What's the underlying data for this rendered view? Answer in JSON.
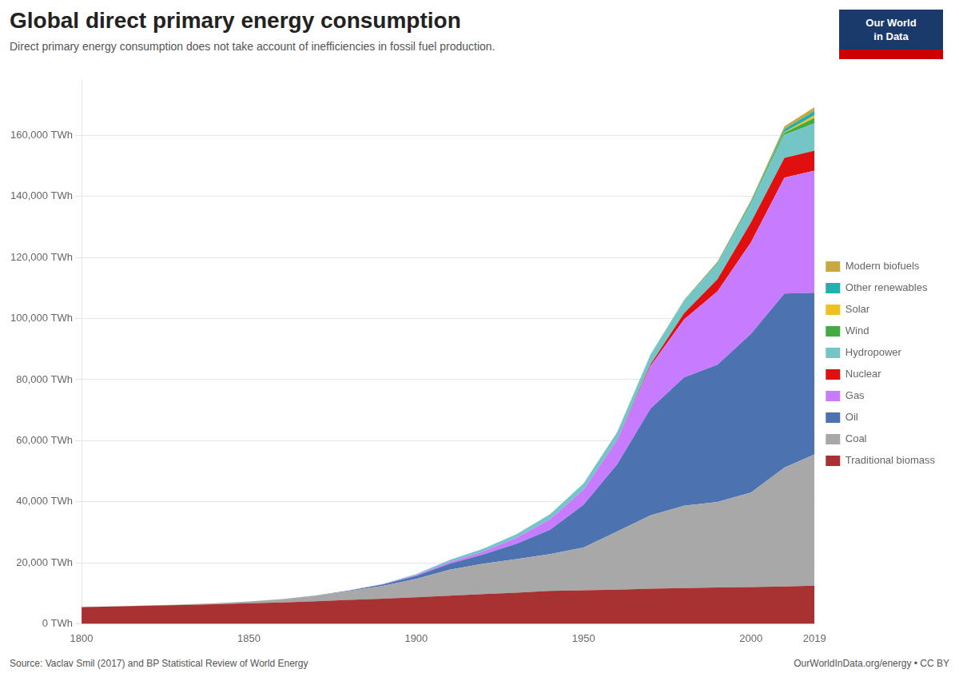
{
  "chart_data": {
    "type": "area",
    "title": "Global direct primary energy consumption",
    "subtitle": "Direct primary energy consumption does not take account of inefficiencies in fossil fuel production.",
    "annotations": [
      "Source: Vaclav Smil (2017) and BP Statistical Review of World Energy",
      "OurWorldInData.org/energy • CC BY",
      "Our World",
      "in Data"
    ],
    "x": [
      1800,
      1810,
      1820,
      1830,
      1840,
      1850,
      1860,
      1870,
      1880,
      1890,
      1900,
      1910,
      1920,
      1930,
      1940,
      1950,
      1960,
      1970,
      1980,
      1990,
      2000,
      2010,
      2019
    ],
    "series": [
      {
        "name": "Traditional biomass",
        "color": "#a83232",
        "values": [
          5500,
          5700,
          5900,
          6100,
          6400,
          6700,
          7000,
          7400,
          7800,
          8200,
          8700,
          9200,
          9700,
          10200,
          10800,
          11000,
          11200,
          11500,
          11700,
          11900,
          12000,
          12200,
          12500
        ]
      },
      {
        "name": "Coal",
        "color": "#a8a8a8",
        "values": [
          0,
          50,
          100,
          200,
          350,
          600,
          1100,
          1800,
          2900,
          4200,
          6000,
          8500,
          10000,
          11000,
          12000,
          14000,
          19000,
          24000,
          27000,
          28000,
          31000,
          39000,
          43000
        ]
      },
      {
        "name": "Oil",
        "color": "#4c72b0",
        "values": [
          0,
          0,
          0,
          0,
          0,
          0,
          0,
          100,
          200,
          500,
          1000,
          2000,
          3000,
          5000,
          8000,
          14000,
          22000,
          35000,
          42000,
          45000,
          52000,
          57000,
          53000
        ]
      },
      {
        "name": "Gas",
        "color": "#c77cff",
        "values": [
          0,
          0,
          0,
          0,
          0,
          0,
          0,
          0,
          50,
          100,
          300,
          600,
          1000,
          2000,
          3500,
          5000,
          8000,
          14000,
          19000,
          24000,
          30000,
          38000,
          40000
        ]
      },
      {
        "name": "Nuclear",
        "color": "#e01010",
        "values": [
          0,
          0,
          0,
          0,
          0,
          0,
          0,
          0,
          0,
          0,
          0,
          0,
          0,
          0,
          0,
          0,
          50,
          500,
          2000,
          4000,
          6500,
          6500,
          6500
        ]
      },
      {
        "name": "Hydropower",
        "color": "#74c6c6",
        "values": [
          0,
          0,
          0,
          0,
          0,
          0,
          0,
          0,
          50,
          100,
          300,
          600,
          900,
          1200,
          1600,
          2000,
          2500,
          3200,
          4000,
          5000,
          6000,
          7500,
          9000
        ]
      },
      {
        "name": "Wind",
        "color": "#44aa44",
        "values": [
          0,
          0,
          0,
          0,
          0,
          0,
          0,
          0,
          0,
          0,
          0,
          0,
          0,
          0,
          0,
          0,
          0,
          0,
          0,
          0,
          100,
          700,
          1800
        ]
      },
      {
        "name": "Solar",
        "color": "#f0c020",
        "values": [
          0,
          0,
          0,
          0,
          0,
          0,
          0,
          0,
          0,
          0,
          0,
          0,
          0,
          0,
          0,
          0,
          0,
          0,
          0,
          0,
          20,
          200,
          800
        ]
      },
      {
        "name": "Other renewables",
        "color": "#20b0b0",
        "values": [
          0,
          0,
          0,
          0,
          0,
          0,
          0,
          0,
          0,
          0,
          0,
          0,
          0,
          0,
          0,
          0,
          50,
          100,
          200,
          400,
          600,
          1000,
          1500
        ]
      },
      {
        "name": "Modern biofuels",
        "color": "#c8a840",
        "values": [
          0,
          0,
          0,
          0,
          0,
          0,
          0,
          0,
          0,
          0,
          0,
          0,
          0,
          0,
          0,
          0,
          0,
          0,
          200,
          400,
          600,
          900,
          1200
        ]
      }
    ],
    "stacked": true,
    "xlim": [
      1800,
      2019
    ],
    "xticks": [
      1800,
      1850,
      1900,
      1950,
      2000,
      2019
    ],
    "ylim": [
      0,
      178000
    ],
    "yticks": [
      {
        "value": 0,
        "label": "0 TWh"
      },
      {
        "value": 20000,
        "label": "20,000 TWh"
      },
      {
        "value": 40000,
        "label": "40,000 TWh"
      },
      {
        "value": 60000,
        "label": "60,000 TWh"
      },
      {
        "value": 80000,
        "label": "80,000 TWh"
      },
      {
        "value": 100000,
        "label": "100,000 TWh"
      },
      {
        "value": 120000,
        "label": "120,000 TWh"
      },
      {
        "value": 140000,
        "label": "140,000 TWh"
      },
      {
        "value": 160000,
        "label": "160,000 TWh"
      }
    ],
    "grid": true,
    "legend": "right"
  }
}
